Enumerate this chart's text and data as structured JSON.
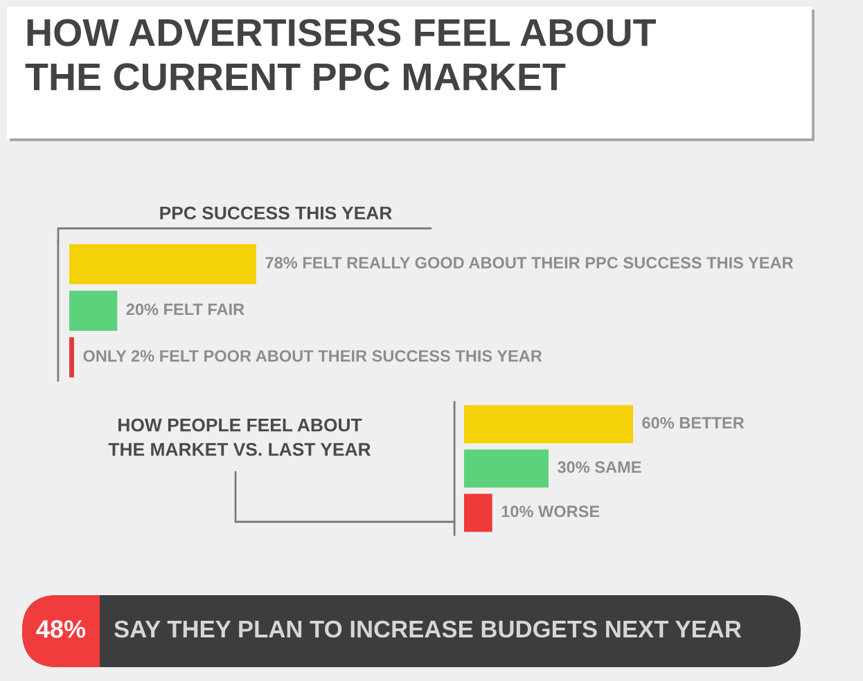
{
  "chart_data": [
    {
      "type": "other",
      "title": "HOW ADVERTISERS FEEL ABOUT\nTHE CURRENT PPC MARKET"
    },
    {
      "type": "bar",
      "orientation": "horizontal",
      "title": "PPC SUCCESS THIS YEAR",
      "categories": [
        null,
        null,
        null
      ],
      "values": [
        78,
        20,
        2
      ],
      "colors": [
        "#f5d108",
        "#5dd27c",
        "#e03a3a"
      ],
      "value_labels": [
        "78% FELT REALLY GOOD ABOUT THEIR PPC SUCCESS THIS YEAR",
        "20% FELT FAIR",
        "ONLY 2% FELT POOR ABOUT THEIR SUCCESS THIS YEAR"
      ]
    },
    {
      "type": "bar",
      "orientation": "horizontal",
      "title": "HOW PEOPLE FEEL ABOUT\nTHE MARKET VS. LAST YEAR",
      "categories": [
        null,
        null,
        null
      ],
      "values": [
        60,
        30,
        10
      ],
      "colors": [
        "#f5d108",
        "#5dd27c",
        "#f03a3a"
      ],
      "value_labels": [
        "60% BETTER",
        "30% SAME",
        "10% WORSE"
      ]
    },
    {
      "type": "other",
      "annotations": [
        "48%",
        "SAY THEY PLAN TO INCREASE BUDGETS NEXT YEAR"
      ]
    }
  ]
}
